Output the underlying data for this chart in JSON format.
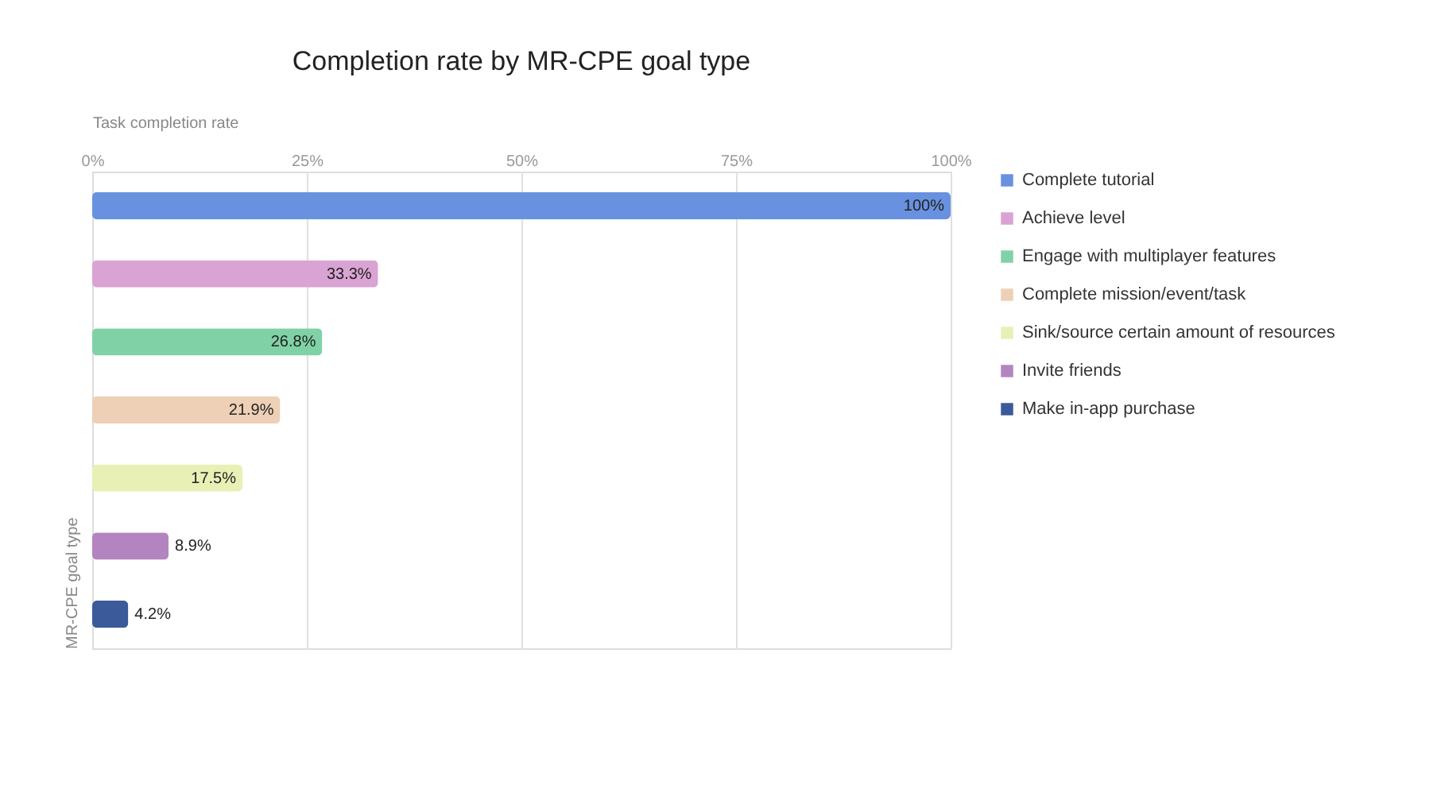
{
  "chart_data": {
    "type": "bar",
    "orientation": "horizontal",
    "title": "Completion rate by MR-CPE goal type",
    "xlabel": "Task completion rate",
    "ylabel": "MR-CPE goal type",
    "categories": [
      null,
      null,
      null,
      null,
      null,
      null,
      null
    ],
    "series": [
      {
        "name": "Complete tutorial",
        "color": "#6892e0",
        "values": [
          100,
          null,
          null,
          null,
          null,
          null,
          null
        ],
        "value_labels": [
          "100%",
          null,
          null,
          null,
          null,
          null,
          null
        ]
      },
      {
        "name": "Achieve level",
        "color": "#d9a3d3",
        "values": [
          null,
          33.3,
          null,
          null,
          null,
          null,
          null
        ],
        "value_labels": [
          null,
          "33.3%",
          null,
          null,
          null,
          null,
          null
        ]
      },
      {
        "name": "Engage with multiplayer features",
        "color": "#80d2a6",
        "values": [
          null,
          null,
          26.8,
          null,
          null,
          null,
          null
        ],
        "value_labels": [
          null,
          null,
          "26.8%",
          null,
          null,
          null,
          null
        ]
      },
      {
        "name": "Complete mission/event/task",
        "color": "#edd0b6",
        "values": [
          null,
          null,
          null,
          21.9,
          null,
          null,
          null
        ],
        "value_labels": [
          null,
          null,
          null,
          "21.9%",
          null,
          null,
          null
        ]
      },
      {
        "name": "Sink/source certain amount of resources",
        "color": "#e8f0b6",
        "values": [
          null,
          null,
          null,
          null,
          17.5,
          null,
          null
        ],
        "value_labels": [
          null,
          null,
          null,
          null,
          "17.5%",
          null,
          null
        ]
      },
      {
        "name": "Invite friends",
        "color": "#b385c0",
        "values": [
          null,
          null,
          null,
          null,
          null,
          8.9,
          null
        ],
        "value_labels": [
          null,
          null,
          null,
          null,
          null,
          "8.9%",
          null
        ]
      },
      {
        "name": "Make in-app purchase",
        "color": "#3a5a9a",
        "values": [
          null,
          null,
          null,
          null,
          null,
          null,
          4.2
        ],
        "value_labels": [
          null,
          null,
          null,
          null,
          null,
          null,
          "4.2%"
        ]
      }
    ],
    "xlim": [
      0,
      100
    ],
    "xticks": [
      {
        "value": 0,
        "label": "0%"
      },
      {
        "value": 25,
        "label": "25%"
      },
      {
        "value": 50,
        "label": "50%"
      },
      {
        "value": 75,
        "label": "75%"
      },
      {
        "value": 100,
        "label": "100%"
      }
    ],
    "grid": "x",
    "legend": "top right",
    "tick_labels": "x"
  }
}
